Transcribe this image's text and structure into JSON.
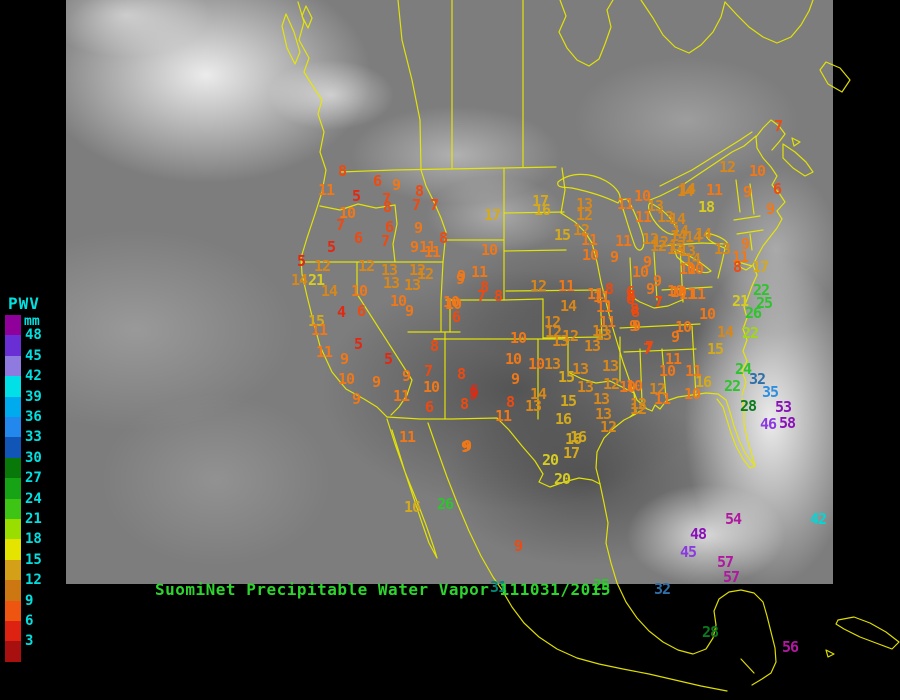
{
  "header": {
    "title": "SuomiNet Precipitable Water Vapor 111031/2015"
  },
  "colors": {
    "background": "#000000",
    "map_outline": "#e8e800",
    "title_green": "#2ed42e",
    "legend_label": "#00e0e0"
  },
  "legend": {
    "title": "PWV",
    "unit": "mm",
    "tick_labels": [
      "48",
      "45",
      "42",
      "39",
      "36",
      "33",
      "30",
      "27",
      "24",
      "21",
      "18",
      "15",
      "12",
      "9",
      "6",
      "3"
    ],
    "swatch_colors": [
      "#90009a",
      "#6a2fd4",
      "#8f7ae0",
      "#00e0e6",
      "#00aaee",
      "#2288ee",
      "#1156b6",
      "#087808",
      "#16a416",
      "#3ec414",
      "#9ade00",
      "#e4e400",
      "#d4a017",
      "#cc7711",
      "#ee5511",
      "#dd2211",
      "#a81010"
    ]
  },
  "palette": {
    "r": "#e22810",
    "o": "#ee4a10",
    "O": "#f07818",
    "a": "#d8881a",
    "y": "#d4aa1c",
    "Y": "#d6cc22",
    "lg": "#a0d818",
    "g": "#2ec42e",
    "dg": "#0c7a1e",
    "t": "#008878",
    "sb": "#2e6fa8",
    "b": "#2e8fe0",
    "c": "#00d8d8",
    "v": "#8a3ae0",
    "p": "#8a10b8",
    "m": "#b018a0"
  },
  "stations": [
    [
      "8",
      342,
      172,
      "o"
    ],
    [
      "11",
      326,
      191,
      "O"
    ],
    [
      "6",
      377,
      182,
      "o"
    ],
    [
      "9",
      396,
      186,
      "O"
    ],
    [
      "5",
      356,
      197,
      "r"
    ],
    [
      "7",
      386,
      200,
      "o"
    ],
    [
      "8",
      419,
      192,
      "o"
    ],
    [
      "8",
      387,
      208,
      "o"
    ],
    [
      "7",
      416,
      206,
      "o"
    ],
    [
      "7",
      434,
      206,
      "o"
    ],
    [
      "10",
      347,
      214,
      "O"
    ],
    [
      "7",
      340,
      226,
      "o"
    ],
    [
      "6",
      389,
      228,
      "o"
    ],
    [
      "9",
      418,
      229,
      "O"
    ],
    [
      "6",
      358,
      239,
      "o"
    ],
    [
      "7",
      385,
      242,
      "o"
    ],
    [
      "8",
      443,
      239,
      "o"
    ],
    [
      "5",
      331,
      248,
      "r"
    ],
    [
      "9",
      414,
      248,
      "O"
    ],
    [
      "11",
      427,
      248,
      "O"
    ],
    [
      "5",
      301,
      262,
      "r"
    ],
    [
      "12",
      322,
      267,
      "a"
    ],
    [
      "12",
      366,
      267,
      "a"
    ],
    [
      "13",
      389,
      271,
      "a"
    ],
    [
      "12",
      417,
      271,
      "a"
    ],
    [
      "9",
      461,
      277,
      "O"
    ],
    [
      "14",
      299,
      281,
      "a"
    ],
    [
      "21",
      316,
      281,
      "Y"
    ],
    [
      "14",
      329,
      292,
      "a"
    ],
    [
      "10",
      359,
      292,
      "O"
    ],
    [
      "13",
      391,
      284,
      "a"
    ],
    [
      "13",
      412,
      286,
      "a"
    ],
    [
      "10",
      398,
      302,
      "O"
    ],
    [
      "9",
      409,
      312,
      "O"
    ],
    [
      "4",
      341,
      313,
      "r"
    ],
    [
      "6",
      361,
      312,
      "o"
    ],
    [
      "10",
      451,
      303,
      "O"
    ],
    [
      "6",
      456,
      318,
      "o"
    ],
    [
      "15",
      316,
      322,
      "y"
    ],
    [
      "11",
      319,
      331,
      "O"
    ],
    [
      "5",
      358,
      345,
      "r"
    ],
    [
      "8",
      434,
      347,
      "o"
    ],
    [
      "11",
      324,
      353,
      "O"
    ],
    [
      "9",
      344,
      360,
      "O"
    ],
    [
      "5",
      388,
      360,
      "r"
    ],
    [
      "7",
      428,
      372,
      "o"
    ],
    [
      "9",
      406,
      377,
      "O"
    ],
    [
      "8",
      461,
      375,
      "o"
    ],
    [
      "10",
      346,
      380,
      "O"
    ],
    [
      "9",
      376,
      383,
      "O"
    ],
    [
      "10",
      431,
      388,
      "O"
    ],
    [
      "5",
      474,
      392,
      "r"
    ],
    [
      "9",
      356,
      400,
      "O"
    ],
    [
      "11",
      401,
      397,
      "O"
    ],
    [
      "6",
      429,
      408,
      "o"
    ],
    [
      "8",
      464,
      405,
      "o"
    ],
    [
      "12",
      425,
      275,
      "a"
    ],
    [
      "11",
      479,
      273,
      "O"
    ],
    [
      "9",
      460,
      280,
      "O"
    ],
    [
      "8",
      484,
      288,
      "o"
    ],
    [
      "7",
      481,
      297,
      "o"
    ],
    [
      "8",
      498,
      297,
      "o"
    ],
    [
      "10",
      453,
      305,
      "O"
    ],
    [
      "14",
      568,
      307,
      "a"
    ],
    [
      "17",
      540,
      202,
      "y"
    ],
    [
      "17",
      492,
      216,
      "y"
    ],
    [
      "16",
      542,
      211,
      "y"
    ],
    [
      "13",
      584,
      205,
      "a"
    ],
    [
      "12",
      584,
      216,
      "a"
    ],
    [
      "15",
      562,
      236,
      "y"
    ],
    [
      "12",
      581,
      231,
      "a"
    ],
    [
      "11",
      589,
      241,
      "O"
    ],
    [
      "10",
      489,
      251,
      "O"
    ],
    [
      "11",
      432,
      253,
      "O"
    ],
    [
      "10",
      590,
      256,
      "O"
    ],
    [
      "9",
      614,
      258,
      "O"
    ],
    [
      "12",
      538,
      287,
      "a"
    ],
    [
      "11",
      566,
      287,
      "O"
    ],
    [
      "8",
      609,
      290,
      "o"
    ],
    [
      "6",
      631,
      297,
      "o"
    ],
    [
      "11",
      601,
      298,
      "O"
    ],
    [
      "10",
      518,
      339,
      "O"
    ],
    [
      "12",
      553,
      333,
      "a"
    ],
    [
      "12",
      570,
      337,
      "a"
    ],
    [
      "13",
      603,
      336,
      "a"
    ],
    [
      "11",
      607,
      323,
      "O"
    ],
    [
      "8",
      634,
      310,
      "o"
    ],
    [
      "9",
      636,
      327,
      "O"
    ],
    [
      "11",
      604,
      308,
      "O"
    ],
    [
      "12",
      552,
      323,
      "a"
    ],
    [
      "13",
      600,
      332,
      "a"
    ],
    [
      "13",
      560,
      342,
      "a"
    ],
    [
      "13",
      592,
      347,
      "a"
    ],
    [
      "7",
      649,
      348,
      "o"
    ],
    [
      "10",
      513,
      360,
      "O"
    ],
    [
      "10",
      536,
      365,
      "O"
    ],
    [
      "13",
      552,
      365,
      "a"
    ],
    [
      "13",
      580,
      370,
      "a"
    ],
    [
      "13",
      610,
      367,
      "a"
    ],
    [
      "9",
      515,
      380,
      "O"
    ],
    [
      "15",
      566,
      378,
      "y"
    ],
    [
      "13",
      585,
      388,
      "a"
    ],
    [
      "12",
      611,
      385,
      "a"
    ],
    [
      "10",
      634,
      387,
      "O"
    ],
    [
      "14",
      538,
      395,
      "a"
    ],
    [
      "15",
      568,
      402,
      "y"
    ],
    [
      "13",
      601,
      400,
      "a"
    ],
    [
      "8",
      510,
      403,
      "o"
    ],
    [
      "13",
      533,
      407,
      "a"
    ],
    [
      "12",
      638,
      405,
      "a"
    ],
    [
      "11",
      503,
      417,
      "O"
    ],
    [
      "13",
      603,
      415,
      "a"
    ],
    [
      "16",
      563,
      420,
      "y"
    ],
    [
      "12",
      608,
      428,
      "a"
    ],
    [
      "16",
      578,
      438,
      "y"
    ],
    [
      "17",
      571,
      454,
      "y"
    ],
    [
      "20",
      550,
      461,
      "Y"
    ],
    [
      "20",
      562,
      480,
      "Y"
    ],
    [
      "9",
      467,
      447,
      "O"
    ],
    [
      "5",
      473,
      395,
      "r"
    ],
    [
      "14",
      687,
      190,
      "a"
    ],
    [
      "10",
      642,
      197,
      "O"
    ],
    [
      "11",
      625,
      205,
      "O"
    ],
    [
      "13",
      655,
      207,
      "a"
    ],
    [
      "18",
      706,
      208,
      "Y"
    ],
    [
      "11",
      643,
      218,
      "O"
    ],
    [
      "13",
      665,
      218,
      "a"
    ],
    [
      "12",
      650,
      240,
      "a"
    ],
    [
      "14",
      680,
      232,
      "a"
    ],
    [
      "14",
      703,
      235,
      "a"
    ],
    [
      "11",
      623,
      242,
      "O"
    ],
    [
      "12",
      660,
      243,
      "a"
    ],
    [
      "13",
      677,
      247,
      "a"
    ],
    [
      "13",
      687,
      252,
      "a"
    ],
    [
      "9",
      647,
      263,
      "O"
    ],
    [
      "10",
      687,
      270,
      "O"
    ],
    [
      "10",
      640,
      273,
      "O"
    ],
    [
      "9",
      657,
      282,
      "O"
    ],
    [
      "9",
      650,
      290,
      "O"
    ],
    [
      "10",
      675,
      292,
      "O"
    ],
    [
      "11",
      687,
      295,
      "O"
    ],
    [
      "11",
      595,
      295,
      "O"
    ],
    [
      "6",
      630,
      293,
      "o"
    ],
    [
      "7",
      778,
      127,
      "o"
    ],
    [
      "12",
      727,
      168,
      "a"
    ],
    [
      "10",
      757,
      172,
      "O"
    ],
    [
      "14",
      685,
      192,
      "a"
    ],
    [
      "11",
      714,
      191,
      "O"
    ],
    [
      "9",
      747,
      193,
      "O"
    ],
    [
      "6",
      777,
      190,
      "o"
    ],
    [
      "9",
      770,
      210,
      "O"
    ],
    [
      "14",
      677,
      220,
      "a"
    ],
    [
      "14",
      678,
      237,
      "a"
    ],
    [
      "14",
      693,
      238,
      "a"
    ],
    [
      "12",
      658,
      247,
      "a"
    ],
    [
      "13",
      675,
      250,
      "a"
    ],
    [
      "13",
      722,
      250,
      "a"
    ],
    [
      "9",
      745,
      245,
      "O"
    ],
    [
      "14",
      692,
      260,
      "a"
    ],
    [
      "11",
      740,
      258,
      "O"
    ],
    [
      "10",
      695,
      270,
      "O"
    ],
    [
      "8",
      737,
      268,
      "o"
    ],
    [
      "17",
      760,
      268,
      "y"
    ],
    [
      "10",
      678,
      293,
      "O"
    ],
    [
      "21",
      740,
      302,
      "Y"
    ],
    [
      "22",
      761,
      291,
      "g"
    ],
    [
      "25",
      764,
      304,
      "g"
    ],
    [
      "26",
      753,
      314,
      "g"
    ],
    [
      "22",
      750,
      334,
      "lg"
    ],
    [
      "24",
      743,
      370,
      "g"
    ],
    [
      "32",
      757,
      380,
      "sb"
    ],
    [
      "35",
      770,
      393,
      "b"
    ],
    [
      "28",
      748,
      407,
      "dg"
    ],
    [
      "53",
      783,
      408,
      "p"
    ],
    [
      "46",
      768,
      425,
      "v"
    ],
    [
      "58",
      787,
      424,
      "p"
    ],
    [
      "22",
      732,
      387,
      "g"
    ],
    [
      "6",
      630,
      300,
      "o"
    ],
    [
      "7",
      658,
      303,
      "o"
    ],
    [
      "11",
      697,
      295,
      "O"
    ],
    [
      "8",
      635,
      313,
      "o"
    ],
    [
      "9",
      633,
      327,
      "O"
    ],
    [
      "10",
      707,
      315,
      "O"
    ],
    [
      "10",
      683,
      328,
      "O"
    ],
    [
      "9",
      675,
      338,
      "O"
    ],
    [
      "14",
      725,
      333,
      "a"
    ],
    [
      "15",
      715,
      350,
      "y"
    ],
    [
      "7",
      647,
      350,
      "o"
    ],
    [
      "11",
      673,
      360,
      "O"
    ],
    [
      "10",
      667,
      372,
      "O"
    ],
    [
      "11",
      693,
      372,
      "O"
    ],
    [
      "10",
      627,
      388,
      "O"
    ],
    [
      "12",
      657,
      390,
      "a"
    ],
    [
      "16",
      703,
      383,
      "y"
    ],
    [
      "10",
      692,
      395,
      "O"
    ],
    [
      "11",
      662,
      400,
      "O"
    ],
    [
      "12",
      638,
      410,
      "a"
    ],
    [
      "11",
      407,
      438,
      "O"
    ],
    [
      "9",
      465,
      448,
      "O"
    ],
    [
      "16",
      573,
      440,
      "y"
    ],
    [
      "16",
      412,
      508,
      "y"
    ],
    [
      "26",
      445,
      505,
      "g"
    ],
    [
      "9",
      518,
      547,
      "o"
    ],
    [
      "31",
      498,
      588,
      "t"
    ],
    [
      "25",
      601,
      586,
      "g"
    ],
    [
      "32",
      662,
      590,
      "sb"
    ],
    [
      "28",
      710,
      633,
      "dg"
    ],
    [
      "56",
      790,
      648,
      "m"
    ],
    [
      "54",
      733,
      520,
      "m"
    ],
    [
      "48",
      698,
      535,
      "p"
    ],
    [
      "42",
      818,
      520,
      "c"
    ],
    [
      "45",
      688,
      553,
      "v"
    ],
    [
      "57",
      725,
      563,
      "m"
    ],
    [
      "57",
      731,
      578,
      "m"
    ]
  ]
}
